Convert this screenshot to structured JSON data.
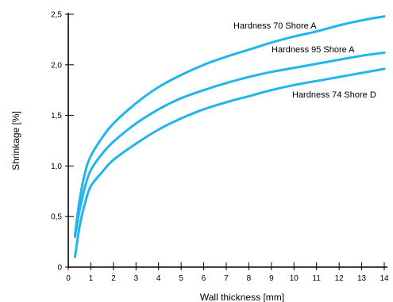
{
  "chart_data": {
    "type": "line",
    "xlabel": "Wall thickness [mm]",
    "ylabel": "Shrinkage [%]",
    "xlim": [
      0,
      14
    ],
    "ylim": [
      0,
      2.5
    ],
    "x_ticks": [
      "0",
      "1",
      "2",
      "3",
      "4",
      "5",
      "6",
      "7",
      "8",
      "9",
      "10",
      "11",
      "12",
      "13",
      "14"
    ],
    "y_ticks": [
      "0",
      "0,5",
      "1,0",
      "1,5",
      "2,0",
      "2,5"
    ],
    "grid": false,
    "line_color": "#22b4ea",
    "series": [
      {
        "name": "Hardness 70 Shore A",
        "x": [
          0.3,
          0.5,
          0.75,
          1,
          1.5,
          2,
          3,
          4,
          5,
          6,
          7,
          8,
          9,
          10,
          11,
          12,
          13,
          14
        ],
        "y": [
          0.32,
          0.66,
          0.94,
          1.1,
          1.28,
          1.42,
          1.62,
          1.78,
          1.9,
          2.0,
          2.08,
          2.15,
          2.22,
          2.28,
          2.33,
          2.39,
          2.44,
          2.48
        ]
      },
      {
        "name": "Hardness 95 Shore A",
        "x": [
          0.3,
          0.5,
          0.75,
          1,
          1.5,
          2,
          3,
          4,
          5,
          6,
          7,
          8,
          9,
          10,
          11,
          12,
          13,
          14
        ],
        "y": [
          0.3,
          0.56,
          0.8,
          0.96,
          1.12,
          1.24,
          1.42,
          1.56,
          1.67,
          1.75,
          1.82,
          1.88,
          1.93,
          1.97,
          2.01,
          2.05,
          2.09,
          2.12
        ]
      },
      {
        "name": "Hardness 74 Shore D",
        "x": [
          0.3,
          0.5,
          0.75,
          1,
          1.5,
          2,
          3,
          4,
          5,
          6,
          7,
          8,
          9,
          10,
          11,
          12,
          13,
          14
        ],
        "y": [
          0.1,
          0.4,
          0.64,
          0.8,
          0.94,
          1.06,
          1.22,
          1.36,
          1.47,
          1.56,
          1.63,
          1.69,
          1.75,
          1.8,
          1.84,
          1.88,
          1.92,
          1.96
        ]
      }
    ]
  }
}
